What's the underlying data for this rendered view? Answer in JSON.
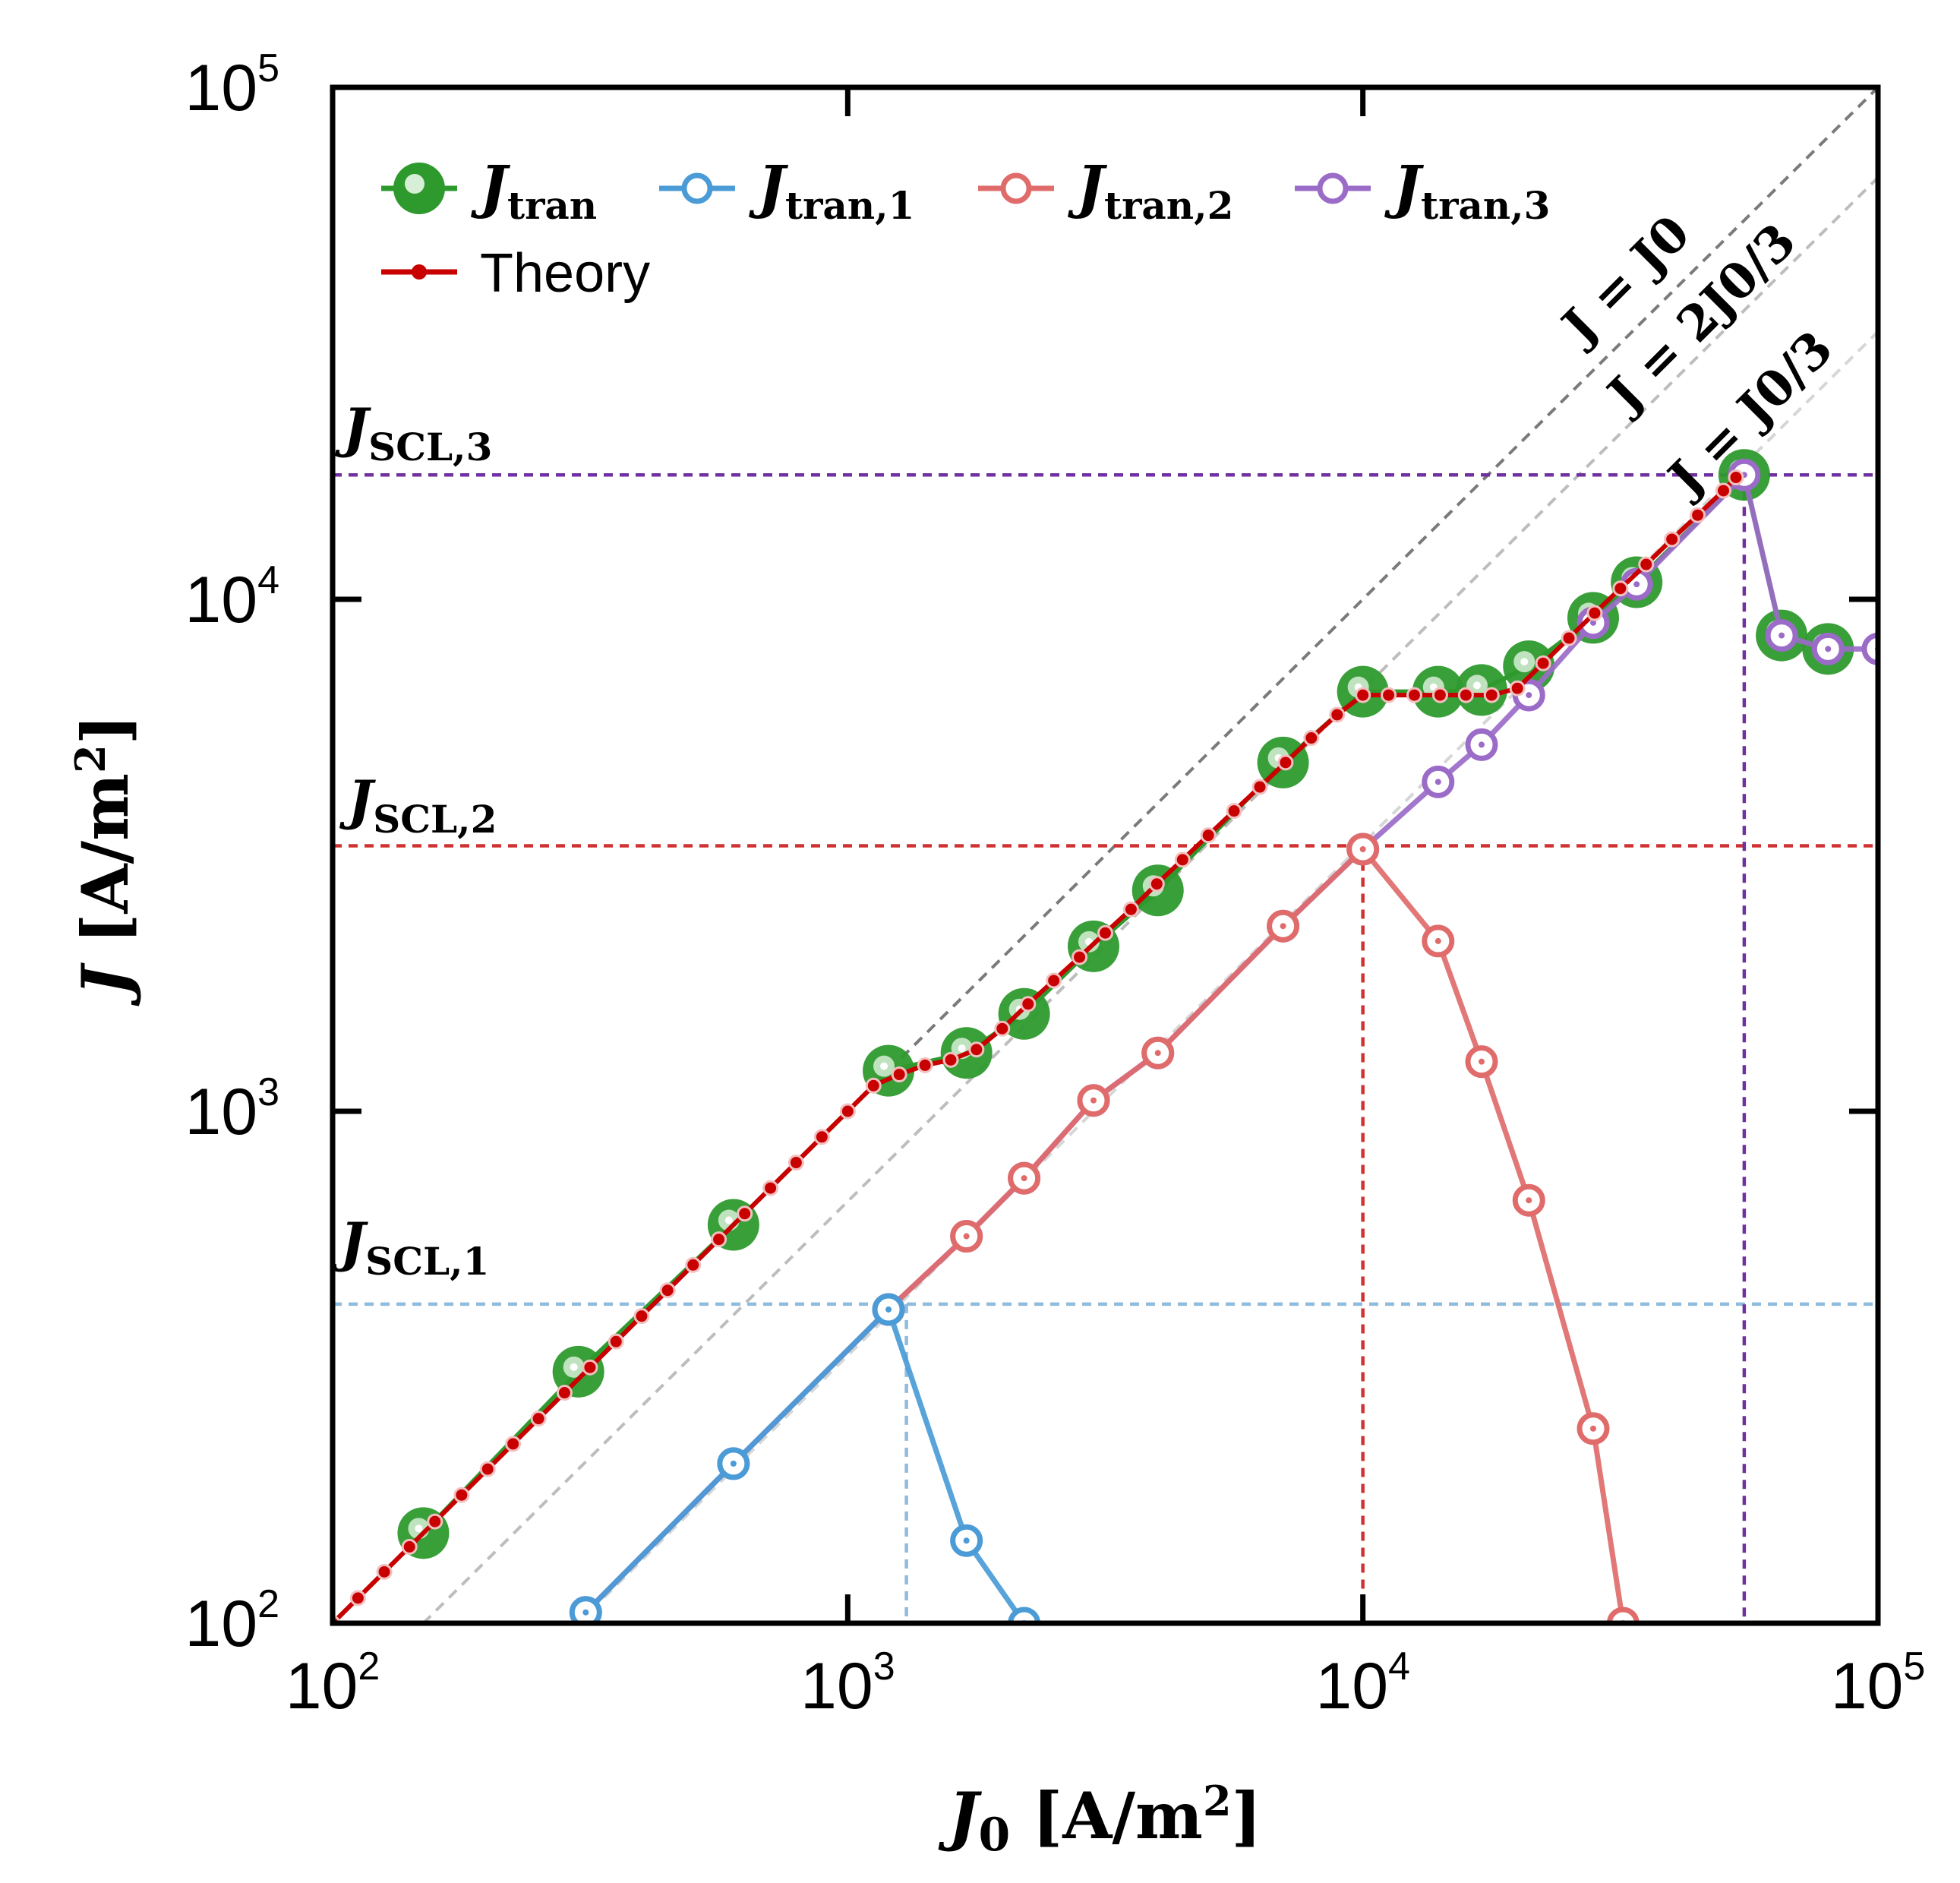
{
  "chart_data": {
    "type": "line",
    "scale": "log-log",
    "xlabel": "J0 [A/m²]",
    "ylabel": "J [A/m²]",
    "xlim": [
      100,
      100000
    ],
    "ylim": [
      100,
      100000
    ],
    "x_ticks": [
      {
        "base": "10",
        "exp": "2",
        "value": 100
      },
      {
        "base": "10",
        "exp": "3",
        "value": 1000
      },
      {
        "base": "10",
        "exp": "4",
        "value": 10000
      },
      {
        "base": "10",
        "exp": "5",
        "value": 100000
      }
    ],
    "y_ticks": [
      {
        "base": "10",
        "exp": "2",
        "value": 100
      },
      {
        "base": "10",
        "exp": "3",
        "value": 1000
      },
      {
        "base": "10",
        "exp": "4",
        "value": 10000
      },
      {
        "base": "10",
        "exp": "5",
        "value": 100000
      }
    ],
    "reference_lines": [
      {
        "label": "J = J0",
        "factor": 1.0,
        "color": "#7a7a7a"
      },
      {
        "label": "J = 2J0/3",
        "factor": 0.6667,
        "color": "#bdbdbd"
      },
      {
        "label": "J = J0/3",
        "factor": 0.3333,
        "color": "#d6d6d6"
      }
    ],
    "thresholds": [
      {
        "label": "J_SCL,1",
        "main": "J",
        "sub": "SCL,1",
        "J": 420,
        "J0": 1300,
        "color": "#8fbcdc"
      },
      {
        "label": "J_SCL,2",
        "main": "J",
        "sub": "SCL,2",
        "J": 3300,
        "J0": 10000,
        "color": "#d03232"
      },
      {
        "label": "J_SCL,3",
        "main": "J",
        "sub": "SCL,3",
        "J": 17500,
        "J0": 55000,
        "color": "#7030a0"
      }
    ],
    "legend": [
      {
        "main": "J",
        "sub": "tran",
        "color": "#2e9a2e",
        "style": "big-filled"
      },
      {
        "main": "J",
        "sub": "tran,1",
        "color": "#4a9bd6",
        "style": "open"
      },
      {
        "main": "J",
        "sub": "tran,2",
        "color": "#e06b6b",
        "style": "open"
      },
      {
        "main": "J",
        "sub": "tran,3",
        "color": "#9b6bc8",
        "style": "open"
      },
      {
        "label": "Theory",
        "color": "#c80000",
        "style": "small"
      }
    ],
    "series": [
      {
        "name": "J_tran",
        "color": "#2e9a2e",
        "x": [
          150,
          300,
          600,
          1200,
          1700,
          2200,
          3000,
          4000,
          7000,
          10000,
          14000,
          17000,
          21000,
          28000,
          34000,
          55000,
          65000,
          80000
        ],
        "y": [
          150,
          310,
          600,
          1200,
          1300,
          1550,
          2100,
          2700,
          4800,
          6600,
          6600,
          6650,
          7400,
          9200,
          10800,
          17500,
          8500,
          8000
        ]
      },
      {
        "name": "J_tran,1",
        "color": "#4a9bd6",
        "x": [
          310,
          600,
          1200,
          1700,
          2200
        ],
        "y": [
          105,
          205,
          410,
          145,
          100
        ]
      },
      {
        "name": "J_tran,2",
        "color": "#e06b6b",
        "x": [
          1200,
          1700,
          2200,
          3000,
          4000,
          7000,
          10000,
          14000,
          17000,
          21000,
          28000,
          32000
        ],
        "y": [
          410,
          570,
          740,
          1050,
          1300,
          2300,
          3250,
          2150,
          1250,
          670,
          240,
          100
        ]
      },
      {
        "name": "J_tran,3",
        "color": "#9b6bc8",
        "x": [
          310,
          600,
          1200,
          1700,
          2200,
          3000,
          4000,
          7000,
          10000,
          14000,
          17000,
          21000,
          28000,
          34000,
          55000,
          65000,
          80000,
          100000
        ],
        "y": [
          105,
          205,
          410,
          570,
          740,
          1050,
          1300,
          2300,
          3250,
          4400,
          5200,
          6500,
          9000,
          10700,
          17500,
          8500,
          8000,
          8000
        ]
      },
      {
        "name": "Theory",
        "color": "#c80000",
        "x": [
          100,
          112,
          126,
          141,
          158,
          178,
          200,
          224,
          251,
          282,
          316,
          355,
          398,
          447,
          501,
          562,
          631,
          708,
          794,
          891,
          1000,
          1122,
          1259,
          1413,
          1585,
          1778,
          1995,
          2239,
          2512,
          2818,
          3162,
          3548,
          3981,
          4467,
          5012,
          5623,
          6310,
          7079,
          7943,
          8913,
          10000,
          11220,
          12589,
          14125,
          15849,
          17783,
          19953,
          22387,
          25119,
          28184,
          31623,
          35481,
          39811,
          44668,
          50119,
          53000
        ],
        "y": [
          100,
          112,
          126,
          141,
          158,
          178,
          200,
          224,
          251,
          282,
          316,
          355,
          398,
          447,
          501,
          562,
          631,
          708,
          794,
          891,
          1000,
          1122,
          1180,
          1230,
          1260,
          1320,
          1450,
          1620,
          1800,
          2000,
          2230,
          2480,
          2780,
          3100,
          3460,
          3860,
          4300,
          4800,
          5360,
          5950,
          6500,
          6500,
          6500,
          6500,
          6500,
          6500,
          6700,
          7500,
          8400,
          9400,
          10500,
          11700,
          13100,
          14600,
          16300,
          17300
        ]
      }
    ]
  }
}
